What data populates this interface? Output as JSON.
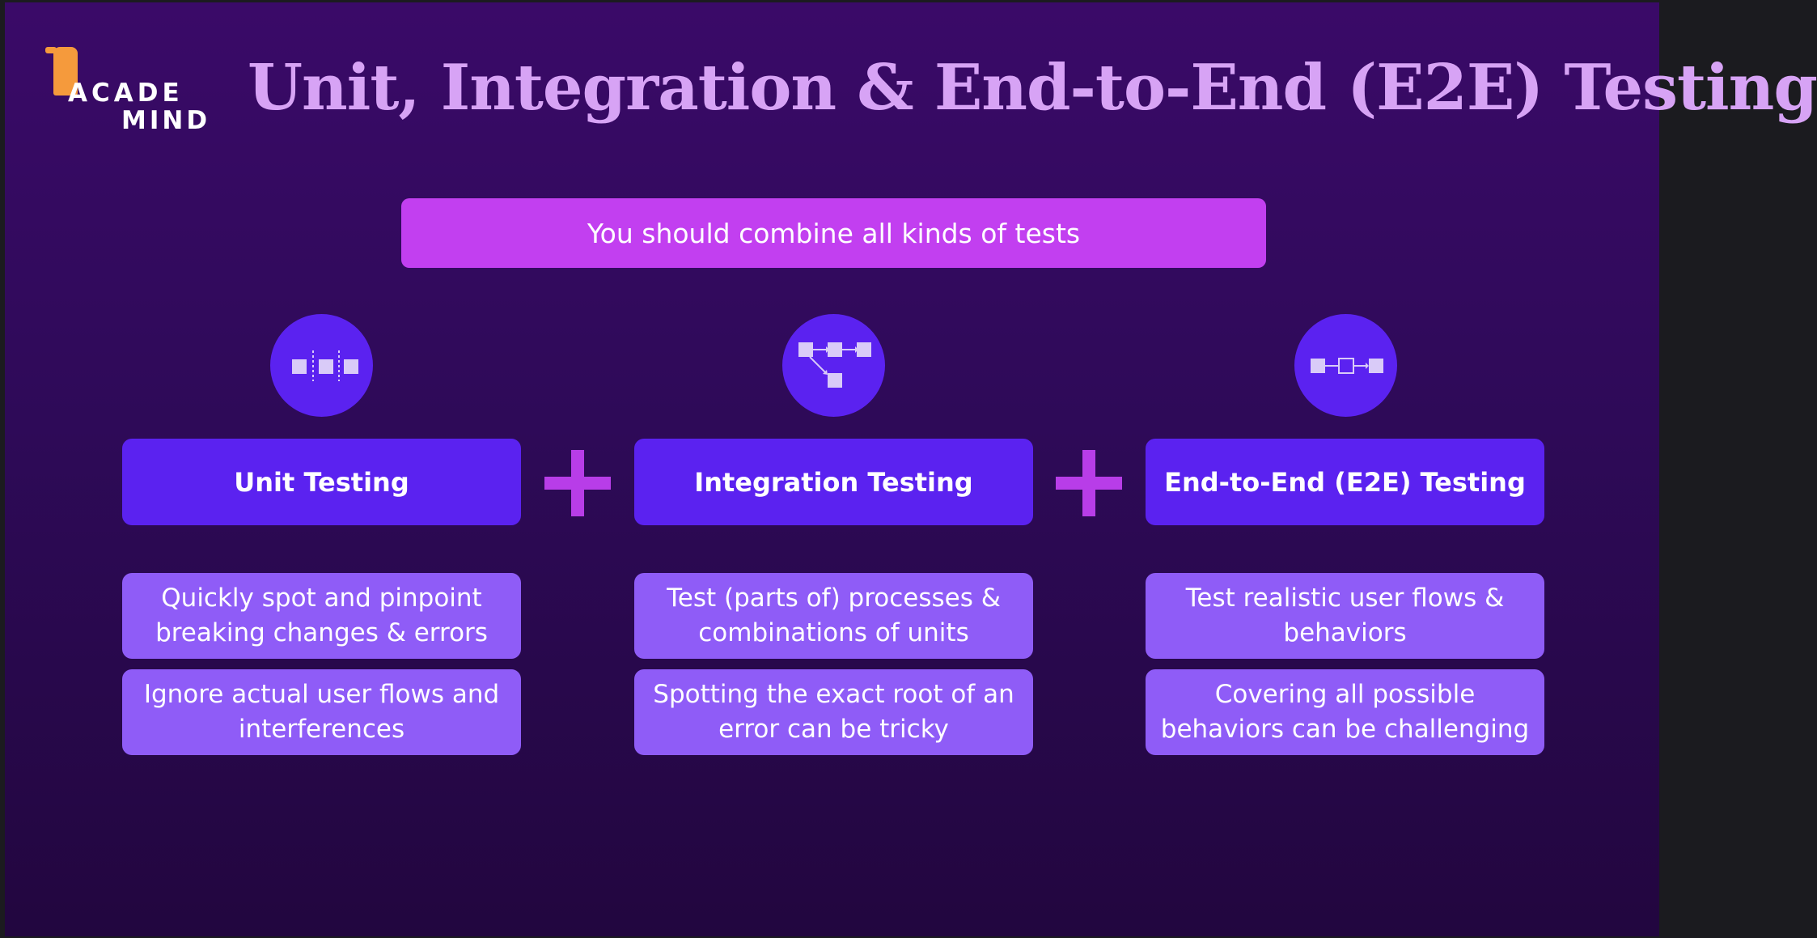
{
  "logo": {
    "line1": "ACADE",
    "line2": "MIND"
  },
  "title": "Unit, Integration & End-to-End (E2E) Testing",
  "banner": "You should combine all kinds of tests",
  "columns": [
    {
      "icon": "unit-blocks-icon",
      "header": "Unit Testing",
      "pro": "Quickly spot and pinpoint breaking changes & errors",
      "con": "Ignore actual user flows and interferences"
    },
    {
      "icon": "integration-flow-icon",
      "header": "Integration Testing",
      "pro": "Test (parts of) processes & combinations of units",
      "con": "Spotting the exact root of an error can be tricky"
    },
    {
      "icon": "e2e-flow-icon",
      "header": "End-to-End (E2E) Testing",
      "pro": "Test realistic user flows & behaviors",
      "con": "Covering all possible behaviors can be challenging"
    }
  ],
  "colors": {
    "background_top": "#3a0a68",
    "background_bottom": "#22063f",
    "title": "#d7a3f5",
    "banner": "#c23ff0",
    "header": "#5b22f0",
    "desc": "#8f5cf7",
    "plus": "#b83de8",
    "logo_accent": "#f59a3c"
  }
}
